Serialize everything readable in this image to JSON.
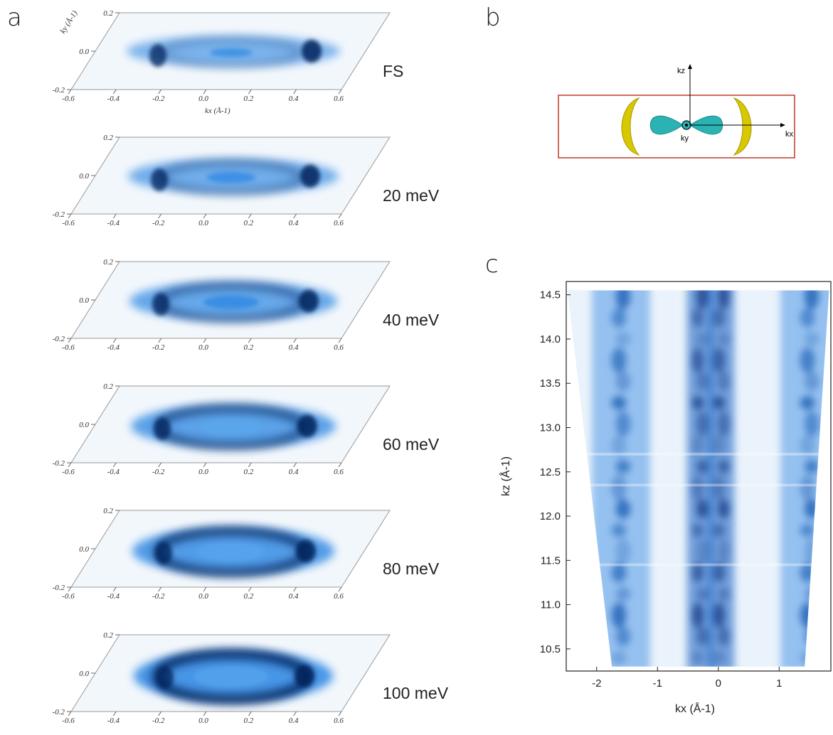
{
  "panels": {
    "a": {
      "letter": "a",
      "slices": [
        {
          "label": "FS",
          "energy_meV": 0
        },
        {
          "label": "20 meV",
          "energy_meV": 20
        },
        {
          "label": "40 meV",
          "energy_meV": 40
        },
        {
          "label": "60 meV",
          "energy_meV": 60
        },
        {
          "label": "80 meV",
          "energy_meV": 80
        },
        {
          "label": "100 meV",
          "energy_meV": 100
        }
      ],
      "kx_ticks": [
        "-0.6",
        "-0.4",
        "-0.2",
        "0.0",
        "0.2",
        "0.4",
        "0.6"
      ],
      "ky_ticks": [
        "0.2",
        "0.0",
        "-0.2"
      ],
      "kx_label": "kx (Å-1)",
      "ky_label": "ky (Å-1)",
      "colors": {
        "intensity_low": "#f2f7fc",
        "intensity_mid": "#1e7ee0",
        "intensity_high": "#04215a"
      }
    },
    "b": {
      "letter": "b",
      "axis_labels": {
        "kz": "kz",
        "kx": "kx",
        "ky": "ky"
      },
      "colors": {
        "box": "#c0392b",
        "outer_pocket": "#d8c800",
        "inner_pocket": "#2bb3b3"
      }
    },
    "c": {
      "letter": "c",
      "xlabel": "kx (Å-1)",
      "ylabel": "kz (Å-1)",
      "x_ticks": [
        "-2",
        "-1",
        "0",
        "1"
      ],
      "y_ticks": [
        "14.5",
        "14.0",
        "13.5",
        "13.0",
        "12.5",
        "12.0",
        "11.5",
        "11.0",
        "10.5"
      ]
    }
  },
  "chart_data": {
    "type": "heatmap",
    "title": "",
    "xlabel": "kx (Å-1)",
    "ylabel": "kz (Å-1)",
    "xlim": [
      -2.5,
      1.85
    ],
    "ylim": [
      10.25,
      14.65
    ],
    "x_ticks": [
      -2,
      -1,
      0,
      1
    ],
    "y_ticks": [
      10.5,
      11.0,
      11.5,
      12.0,
      12.5,
      13.0,
      13.5,
      14.0,
      14.5
    ],
    "features": [
      {
        "kind": "vertical-band",
        "kx_center": -1.6,
        "kx_width": 0.25
      },
      {
        "kind": "vertical-band",
        "kx_center": -0.3,
        "kx_width": 0.2
      },
      {
        "kind": "vertical-band",
        "kx_center": 0.05,
        "kx_width": 0.2
      },
      {
        "kind": "vertical-band",
        "kx_center": 1.5,
        "kx_width": 0.25
      }
    ]
  }
}
